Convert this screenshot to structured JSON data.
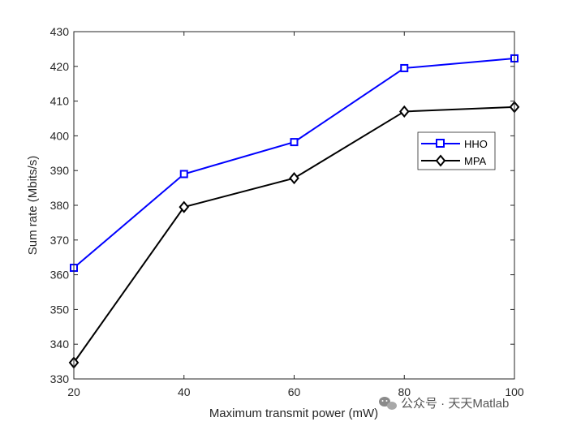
{
  "chart_data": {
    "type": "line",
    "x": [
      20,
      40,
      60,
      80,
      100
    ],
    "xlabel": "Maximum transmit power (mW)",
    "ylabel": "Sum rate (Mbits/s)",
    "xlim": [
      20,
      100
    ],
    "ylim": [
      330,
      430
    ],
    "xticks": [
      20,
      40,
      60,
      80,
      100
    ],
    "yticks": [
      330,
      340,
      350,
      360,
      370,
      380,
      390,
      400,
      410,
      420,
      430
    ],
    "grid": false,
    "legend_position": "upper-right",
    "series": [
      {
        "name": "HHO",
        "color": "#0000ff",
        "marker": "square",
        "values": [
          362,
          389,
          398.2,
          419.5,
          422.3
        ]
      },
      {
        "name": "MPA",
        "color": "#000000",
        "marker": "diamond",
        "values": [
          334.7,
          379.5,
          387.8,
          407,
          408.3
        ]
      }
    ]
  },
  "watermark": {
    "text": "公众号 · 天天Matlab",
    "icon": "wechat-icon"
  }
}
